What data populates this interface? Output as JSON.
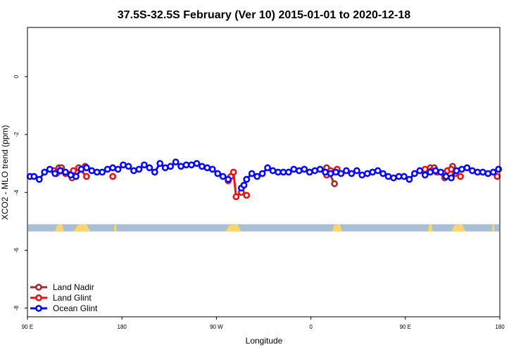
{
  "chart_data": {
    "type": "line",
    "title": "37.5S-32.5S February (Ver 10)   2015-01-01 to 2020-12-18",
    "xlabel": "Longitude",
    "ylabel": "XCO2 - MLO trend (ppm)",
    "xlim": [
      90,
      450
    ],
    "ylim": [
      -8.3,
      1.7
    ],
    "x_ticks": [
      {
        "value": 90,
        "label": "90 E"
      },
      {
        "value": 162,
        "label": "180"
      },
      {
        "value": 234,
        "label": "90 W"
      },
      {
        "value": 306,
        "label": "0"
      },
      {
        "value": 378,
        "label": "90 E"
      },
      {
        "value": 450,
        "label": "180"
      }
    ],
    "y_ticks": [
      {
        "value": 0,
        "label": "0"
      },
      {
        "value": -2,
        "label": "-2"
      },
      {
        "value": -4,
        "label": "-4"
      },
      {
        "value": -6,
        "label": "-6"
      },
      {
        "value": -8,
        "label": "-8"
      }
    ],
    "map_strip": {
      "y_top": -5.1,
      "y_bottom": -5.35,
      "ocean_color": "#a8bfd6",
      "land_color": "#fdd56b",
      "land_segments": [
        [
          111,
          118
        ],
        [
          125,
          138
        ],
        [
          156,
          158
        ],
        [
          241,
          253
        ],
        [
          322,
          330
        ],
        [
          395,
          399
        ],
        [
          413,
          424
        ],
        [
          444,
          446
        ]
      ]
    },
    "series": [
      {
        "name": "Land Nadir",
        "color": "#9b2f2f",
        "x": [
          112,
          114,
          116,
          124,
          134,
          257,
          318,
          324,
          397,
          400,
          408,
          414
        ],
        "y": [
          -3.35,
          -3.15,
          -3.15,
          -3.5,
          -3.1,
          -3.55,
          -3.15,
          -3.7,
          -3.15,
          -3.15,
          -3.5,
          -3.1
        ]
      },
      {
        "name": "Land Glint",
        "color": "#ee1111",
        "x": [
          110,
          113,
          116,
          119,
          125,
          129,
          135,
          155,
          243,
          245,
          247,
          249,
          253,
          257,
          318,
          321,
          326,
          393,
          398,
          402,
          410,
          413,
          416,
          420,
          448
        ],
        "y": [
          -3.25,
          -3.3,
          -3.25,
          -3.35,
          -3.25,
          -3.15,
          -3.45,
          -3.45,
          -3.6,
          -3.45,
          -3.3,
          -4.15,
          -4.0,
          -4.1,
          -3.4,
          -3.25,
          -3.2,
          -3.2,
          -3.25,
          -3.3,
          -3.25,
          -3.2,
          -3.35,
          -3.45,
          -3.45
        ]
      },
      {
        "name": "Ocean Glint",
        "color": "#0a0af0",
        "x": [
          92,
          95,
          99,
          103,
          107,
          111,
          115,
          119,
          123,
          127,
          131,
          135,
          139,
          143,
          147,
          151,
          155,
          159,
          163,
          167,
          171,
          175,
          179,
          183,
          187,
          191,
          195,
          199,
          203,
          207,
          211,
          215,
          219,
          223,
          227,
          231,
          235,
          239,
          243,
          253,
          255,
          257,
          261,
          265,
          269,
          273,
          277,
          281,
          285,
          289,
          293,
          297,
          301,
          305,
          309,
          313,
          317,
          321,
          325,
          329,
          333,
          337,
          341,
          345,
          349,
          353,
          357,
          361,
          365,
          369,
          373,
          377,
          381,
          385,
          389,
          393,
          397,
          401,
          405,
          409,
          413,
          417,
          421,
          425,
          429,
          433,
          437,
          441,
          445,
          449
        ],
        "y": [
          -3.45,
          -3.45,
          -3.55,
          -3.3,
          -3.2,
          -3.35,
          -3.25,
          -3.3,
          -3.4,
          -3.45,
          -3.2,
          -3.15,
          -3.25,
          -3.3,
          -3.3,
          -3.2,
          -3.15,
          -3.2,
          -3.05,
          -3.1,
          -3.25,
          -3.2,
          -3.05,
          -3.15,
          -3.3,
          -3.0,
          -3.15,
          -3.1,
          -2.95,
          -3.1,
          -3.05,
          -3.05,
          -3.0,
          -3.1,
          -3.15,
          -3.2,
          -3.35,
          -3.45,
          -3.55,
          -3.85,
          -3.75,
          -3.55,
          -3.35,
          -3.45,
          -3.35,
          -3.15,
          -3.25,
          -3.3,
          -3.3,
          -3.3,
          -3.2,
          -3.25,
          -3.2,
          -3.3,
          -3.25,
          -3.2,
          -3.3,
          -3.35,
          -3.3,
          -3.35,
          -3.25,
          -3.35,
          -3.25,
          -3.4,
          -3.35,
          -3.3,
          -3.25,
          -3.35,
          -3.45,
          -3.5,
          -3.45,
          -3.45,
          -3.55,
          -3.35,
          -3.25,
          -3.4,
          -3.3,
          -3.25,
          -3.3,
          -3.45,
          -3.5,
          -3.25,
          -3.2,
          -3.15,
          -3.25,
          -3.3,
          -3.3,
          -3.35,
          -3.3,
          -3.2
        ]
      }
    ],
    "legend_position": "bottom-left"
  }
}
